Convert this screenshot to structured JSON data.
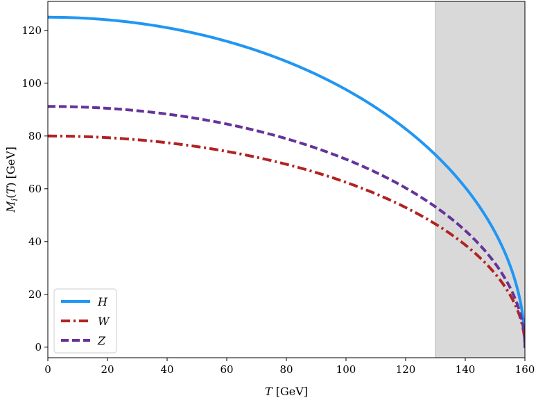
{
  "chart_data": {
    "type": "line",
    "title": "",
    "xlabel": "T [GeV]",
    "ylabel": "M_i(T) [GeV]",
    "xlim": [
      0,
      160
    ],
    "ylim": [
      -4,
      131
    ],
    "xticks": [
      0,
      20,
      40,
      60,
      80,
      100,
      120,
      140,
      160
    ],
    "yticks": [
      0,
      20,
      40,
      60,
      80,
      100,
      120
    ],
    "grid": false,
    "legend_position": "lower-left",
    "shaded_region": {
      "x_from": 130,
      "x_to": 160,
      "color": "#d9d9d9"
    },
    "critical_temperature": 160,
    "series": [
      {
        "name": "H",
        "color": "#2196f3",
        "style": "solid",
        "m0": 125.0,
        "endpoint": 2
      },
      {
        "name": "W",
        "color": "#b22222",
        "style": "dashdot",
        "m0": 80.0,
        "endpoint": 3
      },
      {
        "name": "Z",
        "color": "#663399",
        "style": "dashed",
        "m0": 91.2,
        "endpoint": 4
      }
    ]
  }
}
